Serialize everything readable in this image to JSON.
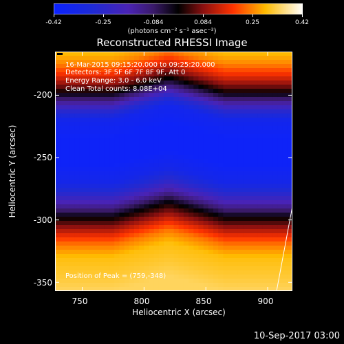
{
  "colorbar": {
    "ticks": [
      "-0.42",
      "-0.25",
      "-0.084",
      "0.084",
      "0.25",
      "0.42"
    ],
    "units": "(photons cm⁻² s⁻¹ asec⁻²)",
    "min": -0.42,
    "max": 0.42
  },
  "title": "Reconstructed RHESSI Image",
  "annotations": {
    "time": "16-Mar-2015 09:15:20.000 to 09:25:20.000",
    "detectors": "Detectors: 3F 5F 6F 7F 8F 9F, Att 0",
    "energy": "Energy Range: 3.0 - 6.0 keV",
    "method": "Clean     Total counts: 8.08E+04",
    "peak": "Position of Peak = (759,-348)"
  },
  "timestamp": "10-Sep-2017 03:00",
  "chart_data": {
    "type": "heatmap",
    "title": "Reconstructed RHESSI Image",
    "xlabel": "Heliocentric X (arcsec)",
    "ylabel": "Heliocentric Y (arcsec)",
    "x_ticks": [
      "750",
      "800",
      "850",
      "900"
    ],
    "y_ticks": [
      "-200",
      "-250",
      "-300",
      "-350"
    ],
    "xlim": [
      728,
      920
    ],
    "ylim": [
      -357,
      -165
    ],
    "colormap": "blue-purple-black-red-yellow-white",
    "value_range": [
      -0.42,
      0.42
    ],
    "y_profile": {
      "y": [
        -165,
        -175,
        -185,
        -192,
        -198,
        -205,
        -212,
        -220,
        -235,
        -255,
        -270,
        -280,
        -290,
        -298,
        -305,
        -312,
        -320,
        -330,
        -345,
        -357
      ],
      "value": [
        0.3,
        0.25,
        0.16,
        0.08,
        0.0,
        -0.12,
        -0.25,
        -0.36,
        -0.4,
        -0.4,
        -0.35,
        -0.25,
        -0.12,
        0.0,
        0.08,
        0.16,
        0.24,
        0.3,
        0.32,
        0.34
      ]
    },
    "ridge": {
      "x": 820,
      "shift": 12
    },
    "peak_x": 759,
    "peak_y": -348
  }
}
